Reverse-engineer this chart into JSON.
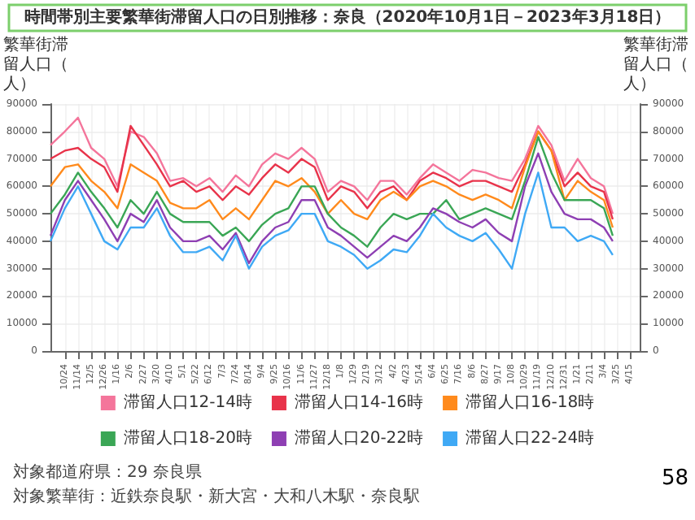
{
  "chart_data": {
    "type": "line",
    "title": "時間帯別主要繁華街滞留人口の日別推移：奈良（2020年10月1日－2023年3月18日）",
    "ylabel": "繁華街滞留人口（人）",
    "y2label": "繁華街滞留人口（人）",
    "x": [
      "2020-10-01",
      "2020-10-24",
      "2020-11-14",
      "2020-12-05",
      "2020-12-26",
      "2021-01-16",
      "2021-02-06",
      "2021-02-27",
      "2021-03-20",
      "2021-04-10",
      "2021-05-01",
      "2021-05-22",
      "2021-06-12",
      "2021-07-03",
      "2021-07-24",
      "2021-08-14",
      "2021-09-04",
      "2021-09-25",
      "2021-10-16",
      "2021-11-06",
      "2021-11-27",
      "2021-12-18",
      "2022-01-08",
      "2022-01-29",
      "2022-02-19",
      "2022-03-12",
      "2022-04-02",
      "2022-04-23",
      "2022-05-14",
      "2022-06-04",
      "2022-06-25",
      "2022-07-16",
      "2022-08-06",
      "2022-08-27",
      "2022-09-17",
      "2022-10-08",
      "2022-10-29",
      "2022-11-19",
      "2022-12-10",
      "2022-12-31",
      "2023-01-21",
      "2023-02-11",
      "2023-03-04",
      "2023-03-18"
    ],
    "series": [
      {
        "name": "滞留人口12-14時",
        "color": "#f4759b",
        "values": [
          75000,
          80000,
          85000,
          74000,
          70000,
          60000,
          80000,
          78000,
          72000,
          62000,
          63000,
          60000,
          63000,
          58000,
          64000,
          60000,
          68000,
          72000,
          70000,
          74000,
          70000,
          58000,
          62000,
          60000,
          55000,
          62000,
          62000,
          57000,
          63000,
          68000,
          65000,
          62000,
          66000,
          65000,
          63000,
          62000,
          70000,
          82000,
          75000,
          62000,
          70000,
          63000,
          60000,
          50000
        ]
      },
      {
        "name": "滞留人口14-16時",
        "color": "#e8334a",
        "values": [
          70000,
          73000,
          74000,
          70000,
          67000,
          58000,
          82000,
          75000,
          68000,
          60000,
          62000,
          58000,
          60000,
          55000,
          60000,
          57000,
          63000,
          68000,
          65000,
          70000,
          67000,
          55000,
          60000,
          58000,
          52000,
          58000,
          60000,
          55000,
          62000,
          65000,
          63000,
          60000,
          62000,
          62000,
          60000,
          58000,
          68000,
          80000,
          73000,
          60000,
          65000,
          60000,
          58000,
          48000
        ]
      },
      {
        "name": "滞留人口16-18時",
        "color": "#ff8a1c",
        "values": [
          60000,
          67000,
          68000,
          62000,
          58000,
          52000,
          68000,
          65000,
          62000,
          54000,
          52000,
          52000,
          55000,
          48000,
          52000,
          48000,
          55000,
          62000,
          60000,
          63000,
          58000,
          50000,
          55000,
          50000,
          48000,
          55000,
          58000,
          55000,
          60000,
          62000,
          60000,
          57000,
          55000,
          57000,
          55000,
          52000,
          67000,
          80000,
          73000,
          55000,
          62000,
          58000,
          55000,
          45000
        ]
      },
      {
        "name": "滞留人口18-20時",
        "color": "#3aa655",
        "values": [
          50000,
          57000,
          65000,
          58000,
          52000,
          45000,
          55000,
          50000,
          58000,
          50000,
          47000,
          47000,
          47000,
          42000,
          45000,
          40000,
          46000,
          50000,
          52000,
          60000,
          60000,
          50000,
          45000,
          42000,
          38000,
          45000,
          50000,
          48000,
          50000,
          50000,
          55000,
          48000,
          50000,
          52000,
          50000,
          48000,
          62000,
          78000,
          65000,
          55000,
          55000,
          55000,
          52000,
          42000
        ]
      },
      {
        "name": "滞留人口20-22時",
        "color": "#8e3fb3",
        "values": [
          42000,
          55000,
          62000,
          55000,
          48000,
          40000,
          50000,
          47000,
          55000,
          45000,
          40000,
          40000,
          42000,
          37000,
          43000,
          32000,
          40000,
          45000,
          47000,
          55000,
          55000,
          45000,
          42000,
          38000,
          34000,
          38000,
          42000,
          40000,
          45000,
          52000,
          50000,
          47000,
          45000,
          48000,
          43000,
          40000,
          60000,
          72000,
          58000,
          50000,
          48000,
          48000,
          45000,
          40000
        ]
      },
      {
        "name": "滞留人口22-24時",
        "color": "#3fa9f5",
        "values": [
          40000,
          52000,
          60000,
          50000,
          40000,
          37000,
          45000,
          45000,
          52000,
          42000,
          36000,
          36000,
          38000,
          33000,
          42000,
          30000,
          38000,
          42000,
          44000,
          50000,
          50000,
          40000,
          38000,
          35000,
          30000,
          33000,
          37000,
          36000,
          42000,
          50000,
          45000,
          42000,
          40000,
          43000,
          37000,
          30000,
          50000,
          65000,
          45000,
          45000,
          40000,
          42000,
          40000,
          35000
        ]
      }
    ],
    "xlim": [
      "2020-10-01",
      "2023-04-30"
    ],
    "xticks": [
      {
        "value": "2020-10-24",
        "label": "10/24"
      },
      {
        "value": "2020-11-14",
        "label": "11/14"
      },
      {
        "value": "2020-12-05",
        "label": "12/5"
      },
      {
        "value": "2020-12-26",
        "label": "12/26"
      },
      {
        "value": "2021-01-16",
        "label": "1/16"
      },
      {
        "value": "2021-02-06",
        "label": "2/6"
      },
      {
        "value": "2021-02-27",
        "label": "2/27"
      },
      {
        "value": "2021-03-20",
        "label": "3/20"
      },
      {
        "value": "2021-04-10",
        "label": "4/10"
      },
      {
        "value": "2021-05-01",
        "label": "5/1"
      },
      {
        "value": "2021-05-22",
        "label": "5/22"
      },
      {
        "value": "2021-06-12",
        "label": "6/12"
      },
      {
        "value": "2021-07-03",
        "label": "7/3"
      },
      {
        "value": "2021-07-24",
        "label": "7/24"
      },
      {
        "value": "2021-08-14",
        "label": "8/14"
      },
      {
        "value": "2021-09-04",
        "label": "9/4"
      },
      {
        "value": "2021-09-25",
        "label": "9/25"
      },
      {
        "value": "2021-10-16",
        "label": "10/16"
      },
      {
        "value": "2021-11-06",
        "label": "11/6"
      },
      {
        "value": "2021-11-27",
        "label": "11/27"
      },
      {
        "value": "2021-12-18",
        "label": "12/18"
      },
      {
        "value": "2022-01-08",
        "label": "1/8"
      },
      {
        "value": "2022-01-29",
        "label": "1/29"
      },
      {
        "value": "2022-02-19",
        "label": "2/19"
      },
      {
        "value": "2022-03-12",
        "label": "3/12"
      },
      {
        "value": "2022-04-02",
        "label": "4/2"
      },
      {
        "value": "2022-04-23",
        "label": "4/23"
      },
      {
        "value": "2022-05-14",
        "label": "5/14"
      },
      {
        "value": "2022-06-04",
        "label": "6/4"
      },
      {
        "value": "2022-06-25",
        "label": "6/25"
      },
      {
        "value": "2022-07-16",
        "label": "7/16"
      },
      {
        "value": "2022-08-06",
        "label": "8/6"
      },
      {
        "value": "2022-08-27",
        "label": "8/27"
      },
      {
        "value": "2022-09-17",
        "label": "9/17"
      },
      {
        "value": "2022-10-08",
        "label": "10/8"
      },
      {
        "value": "2022-10-29",
        "label": "10/29"
      },
      {
        "value": "2022-11-19",
        "label": "11/19"
      },
      {
        "value": "2022-12-10",
        "label": "12/10"
      },
      {
        "value": "2022-12-31",
        "label": "12/31"
      },
      {
        "value": "2023-01-21",
        "label": "1/21"
      },
      {
        "value": "2023-02-11",
        "label": "2/11"
      },
      {
        "value": "2023-03-04",
        "label": "3/4"
      },
      {
        "value": "2023-03-25",
        "label": "3/25"
      },
      {
        "value": "2023-04-15",
        "label": "4/15"
      }
    ],
    "ylim": [
      0,
      90000
    ],
    "yticks": [
      0,
      10000,
      20000,
      30000,
      40000,
      50000,
      60000,
      70000,
      80000,
      90000
    ],
    "y2lim": [
      0,
      90000
    ],
    "y2ticks": [
      0,
      10000,
      20000,
      30000,
      40000,
      50000,
      60000,
      70000,
      80000,
      90000
    ],
    "grid": true,
    "legend": "bottom",
    "marker": "none",
    "annotations": [
      "対象都道府県：29 奈良県",
      "対象繁華街：近鉄奈良駅・新大宮・大和八木駅・奈良駅",
      "58"
    ]
  }
}
